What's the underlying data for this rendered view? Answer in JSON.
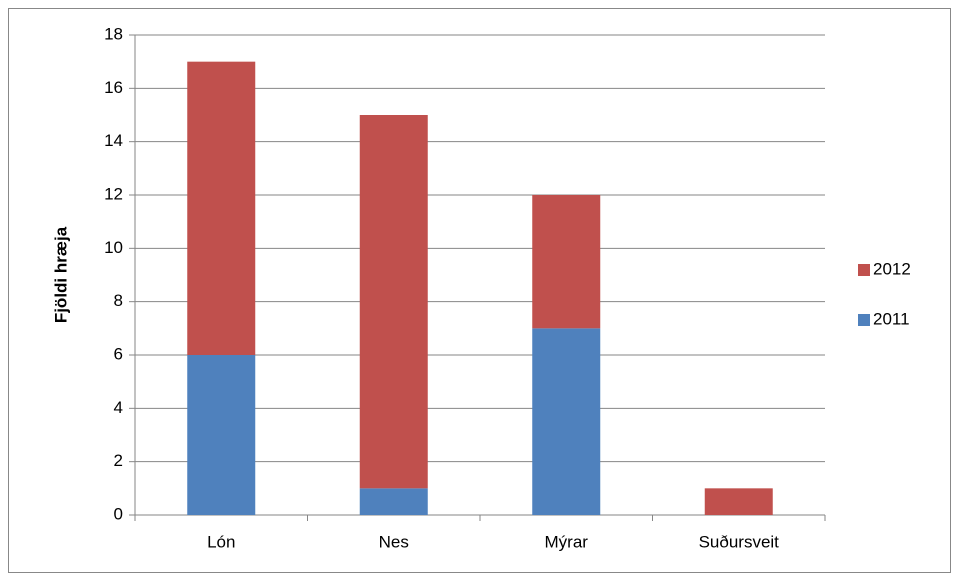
{
  "chart_data": {
    "type": "stacked_bar",
    "y_axis_label": "Fjöldi hræja",
    "categories": [
      "Lón",
      "Nes",
      "Mýrar",
      "Suðursveit"
    ],
    "series": [
      {
        "name": "2011",
        "color": "#4f81bd",
        "values": [
          6,
          1,
          7,
          0
        ]
      },
      {
        "name": "2012",
        "color": "#c0504d",
        "values": [
          11,
          14,
          5,
          1
        ]
      }
    ],
    "ylim": [
      0,
      18
    ],
    "yticks": [
      0,
      2,
      4,
      6,
      8,
      10,
      12,
      14,
      16,
      18
    ],
    "grid": true,
    "legend": "right"
  }
}
